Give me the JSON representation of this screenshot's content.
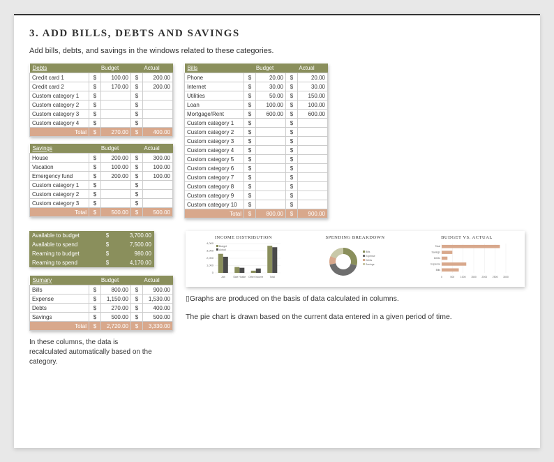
{
  "title": "3. ADD BILLS, DEBTS AND SAVINGS",
  "subtitle": "Add bills, debts, and savings in the windows related to these categories.",
  "debts": {
    "header": "Debts",
    "col_budget": "Budget",
    "col_actual": "Actual",
    "rows": [
      {
        "label": "Credit card 1",
        "budget": "100.00",
        "actual": "200.00"
      },
      {
        "label": "Credit card 2",
        "budget": "170.00",
        "actual": "200.00"
      },
      {
        "label": "Custom category 1",
        "budget": "",
        "actual": ""
      },
      {
        "label": "Custom category 2",
        "budget": "",
        "actual": ""
      },
      {
        "label": "Custom category 3",
        "budget": "",
        "actual": ""
      },
      {
        "label": "Custom category 4",
        "budget": "",
        "actual": ""
      }
    ],
    "total_label": "Total",
    "total_budget": "270.00",
    "total_actual": "400.00"
  },
  "savings": {
    "header": "Savings",
    "col_budget": "Budget",
    "col_actual": "Actual",
    "rows": [
      {
        "label": "House",
        "budget": "200.00",
        "actual": "300.00"
      },
      {
        "label": "Vacation",
        "budget": "100.00",
        "actual": "100.00"
      },
      {
        "label": "Emergency fund",
        "budget": "200.00",
        "actual": "100.00"
      },
      {
        "label": "Custom category 1",
        "budget": "",
        "actual": ""
      },
      {
        "label": "Custom category 2",
        "budget": "",
        "actual": ""
      },
      {
        "label": "Custom category 3",
        "budget": "",
        "actual": ""
      }
    ],
    "total_label": "Total",
    "total_budget": "500.00",
    "total_actual": "500.00"
  },
  "bills": {
    "header": "Bills",
    "col_budget": "Budget",
    "col_actual": "Actual",
    "rows": [
      {
        "label": "Phone",
        "budget": "20.00",
        "actual": "20.00"
      },
      {
        "label": "Internet",
        "budget": "30.00",
        "actual": "30.00"
      },
      {
        "label": "Utilities",
        "budget": "50.00",
        "actual": "150.00"
      },
      {
        "label": "Loan",
        "budget": "100.00",
        "actual": "100.00"
      },
      {
        "label": "Mortgage/Rent",
        "budget": "600.00",
        "actual": "600.00"
      },
      {
        "label": "Custom category 1",
        "budget": "",
        "actual": ""
      },
      {
        "label": "Custom category 2",
        "budget": "",
        "actual": ""
      },
      {
        "label": "Custom category 3",
        "budget": "",
        "actual": ""
      },
      {
        "label": "Custom category 4",
        "budget": "",
        "actual": ""
      },
      {
        "label": "Custom category 5",
        "budget": "",
        "actual": ""
      },
      {
        "label": "Custom category 6",
        "budget": "",
        "actual": ""
      },
      {
        "label": "Custom category 7",
        "budget": "",
        "actual": ""
      },
      {
        "label": "Custom category 8",
        "budget": "",
        "actual": ""
      },
      {
        "label": "Custom category 9",
        "budget": "",
        "actual": ""
      },
      {
        "label": "Custom category 10",
        "budget": "",
        "actual": ""
      }
    ],
    "total_label": "Total",
    "total_budget": "800.00",
    "total_actual": "900.00"
  },
  "available": {
    "rows": [
      {
        "label": "Available to budget",
        "val": "3,700.00"
      },
      {
        "label": "Available to spend",
        "val": "7,500.00"
      },
      {
        "label": "Reaming to budget",
        "val": "980.00"
      },
      {
        "label": "Reaming to spend",
        "val": "4,170.00"
      }
    ]
  },
  "summary": {
    "header": "Sumary",
    "col_budget": "Budget",
    "col_actual": "Actual",
    "rows": [
      {
        "label": "Bills",
        "budget": "800.00",
        "actual": "900.00"
      },
      {
        "label": "Expense",
        "budget": "1,150.00",
        "actual": "1,530.00"
      },
      {
        "label": "Debts",
        "budget": "270.00",
        "actual": "400.00"
      },
      {
        "label": "Savings",
        "budget": "500.00",
        "actual": "500.00"
      }
    ],
    "total_label": "Total",
    "total_budget": "2,720.00",
    "total_actual": "3,330.00"
  },
  "caption_left": "In these columns, the data is recalculated automatically based on the category.",
  "charts": {
    "income": {
      "title": "INCOME DISTRIBUTION",
      "type": "bar",
      "categories": [
        "Job",
        "Side Hustle",
        "Other Income",
        "Total"
      ],
      "series": [
        {
          "name": "Budget",
          "color": "#8a8f5c",
          "values": [
            2600,
            800,
            300,
            3700
          ]
        },
        {
          "name": "Actual",
          "color": "#4a4a4a",
          "values": [
            2200,
            700,
            600,
            3500
          ]
        }
      ],
      "ylim": [
        0,
        4000
      ],
      "ytick": 1000,
      "label_fontsize": 5
    },
    "spending": {
      "title": "SPENDING BREAKDOWN",
      "type": "donut",
      "slices": [
        {
          "label": "Bills",
          "value": 800,
          "color": "#8a8f5c"
        },
        {
          "label": "Expense",
          "value": 1150,
          "color": "#6e6e6e"
        },
        {
          "label": "Debts",
          "value": 270,
          "color": "#d8a88c"
        },
        {
          "label": "Savings",
          "value": 500,
          "color": "#c8c8a8"
        }
      ]
    },
    "bva": {
      "title": "BUDGET VS. ACTUAL",
      "type": "hbar",
      "categories": [
        "Total",
        "Savings",
        "Debts",
        "Expense",
        "Bills"
      ],
      "values": [
        2720,
        500,
        270,
        1150,
        800
      ],
      "color": "#d8a88c",
      "xlim": [
        0,
        3000
      ],
      "xtick": 500
    }
  },
  "text1": "▯Graphs are produced on the basis of data calculated in columns.",
  "text2": "The pie chart is drawn based on the current data entered in a given period of time.",
  "currency": "$",
  "colors": {
    "olive": "#8a8f5c",
    "terracotta": "#d8a88c",
    "dark": "#4a4a4a"
  }
}
